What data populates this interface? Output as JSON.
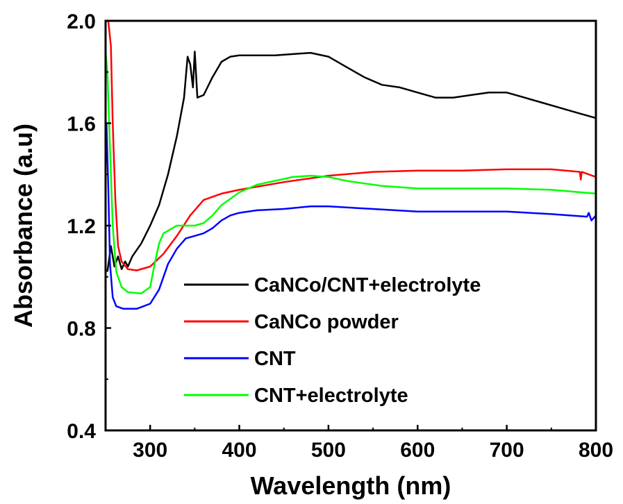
{
  "chart_data": {
    "type": "line",
    "xlabel": "Wavelength (nm)",
    "ylabel": "Absorbance (a.u)",
    "xlim": [
      250,
      800
    ],
    "ylim": [
      0.4,
      2.0
    ],
    "xticks": [
      300,
      400,
      500,
      600,
      700,
      800
    ],
    "yticks": [
      0.4,
      0.8,
      1.2,
      1.6,
      2.0
    ],
    "xtick_labels": [
      "300",
      "400",
      "500",
      "600",
      "700",
      "800"
    ],
    "ytick_labels": [
      "0.4",
      "0.8",
      "1.2",
      "1.6",
      "2.0"
    ],
    "grid": false,
    "legend_position": "lower-right",
    "series": [
      {
        "name": "CaNCo/CNT+electrolyte",
        "color": "#000000",
        "points": [
          [
            252,
            1.02
          ],
          [
            256,
            1.12
          ],
          [
            260,
            1.04
          ],
          [
            264,
            1.08
          ],
          [
            268,
            1.03
          ],
          [
            272,
            1.06
          ],
          [
            275,
            1.04
          ],
          [
            280,
            1.08
          ],
          [
            290,
            1.13
          ],
          [
            300,
            1.2
          ],
          [
            310,
            1.28
          ],
          [
            320,
            1.4
          ],
          [
            330,
            1.55
          ],
          [
            338,
            1.7
          ],
          [
            342,
            1.86
          ],
          [
            345,
            1.83
          ],
          [
            348,
            1.74
          ],
          [
            350,
            1.88
          ],
          [
            353,
            1.7
          ],
          [
            360,
            1.71
          ],
          [
            370,
            1.78
          ],
          [
            380,
            1.84
          ],
          [
            390,
            1.86
          ],
          [
            400,
            1.865
          ],
          [
            420,
            1.865
          ],
          [
            440,
            1.865
          ],
          [
            460,
            1.87
          ],
          [
            480,
            1.875
          ],
          [
            500,
            1.86
          ],
          [
            520,
            1.82
          ],
          [
            540,
            1.78
          ],
          [
            560,
            1.75
          ],
          [
            580,
            1.74
          ],
          [
            600,
            1.72
          ],
          [
            620,
            1.7
          ],
          [
            640,
            1.7
          ],
          [
            660,
            1.71
          ],
          [
            680,
            1.72
          ],
          [
            700,
            1.72
          ],
          [
            720,
            1.7
          ],
          [
            740,
            1.68
          ],
          [
            760,
            1.66
          ],
          [
            780,
            1.64
          ],
          [
            800,
            1.62
          ]
        ]
      },
      {
        "name": "CaNCo powder",
        "color": "#ff0000",
        "points": [
          [
            253,
            2.0
          ],
          [
            256,
            1.9
          ],
          [
            258,
            1.6
          ],
          [
            261,
            1.3
          ],
          [
            264,
            1.12
          ],
          [
            268,
            1.06
          ],
          [
            275,
            1.03
          ],
          [
            285,
            1.025
          ],
          [
            300,
            1.04
          ],
          [
            315,
            1.09
          ],
          [
            330,
            1.16
          ],
          [
            345,
            1.24
          ],
          [
            360,
            1.3
          ],
          [
            380,
            1.325
          ],
          [
            400,
            1.34
          ],
          [
            450,
            1.37
          ],
          [
            500,
            1.395
          ],
          [
            550,
            1.41
          ],
          [
            600,
            1.415
          ],
          [
            650,
            1.415
          ],
          [
            700,
            1.42
          ],
          [
            750,
            1.42
          ],
          [
            782,
            1.41
          ],
          [
            783,
            1.38
          ],
          [
            784,
            1.41
          ],
          [
            800,
            1.39
          ]
        ]
      },
      {
        "name": "CNT",
        "color": "#0000ff",
        "points": [
          [
            251,
            1.6
          ],
          [
            253,
            1.35
          ],
          [
            255,
            1.05
          ],
          [
            258,
            0.92
          ],
          [
            262,
            0.885
          ],
          [
            270,
            0.875
          ],
          [
            285,
            0.875
          ],
          [
            300,
            0.895
          ],
          [
            310,
            0.95
          ],
          [
            320,
            1.05
          ],
          [
            330,
            1.11
          ],
          [
            340,
            1.15
          ],
          [
            350,
            1.16
          ],
          [
            360,
            1.17
          ],
          [
            370,
            1.19
          ],
          [
            380,
            1.22
          ],
          [
            390,
            1.24
          ],
          [
            400,
            1.25
          ],
          [
            420,
            1.26
          ],
          [
            450,
            1.265
          ],
          [
            480,
            1.275
          ],
          [
            500,
            1.275
          ],
          [
            550,
            1.265
          ],
          [
            600,
            1.255
          ],
          [
            650,
            1.255
          ],
          [
            700,
            1.255
          ],
          [
            750,
            1.245
          ],
          [
            790,
            1.235
          ],
          [
            792,
            1.25
          ],
          [
            795,
            1.22
          ],
          [
            800,
            1.24
          ]
        ]
      },
      {
        "name": "CNT+electrolyte",
        "color": "#00ff00",
        "points": [
          [
            250,
            1.88
          ],
          [
            252,
            1.8
          ],
          [
            255,
            1.5
          ],
          [
            258,
            1.2
          ],
          [
            262,
            1.02
          ],
          [
            268,
            0.96
          ],
          [
            275,
            0.94
          ],
          [
            290,
            0.935
          ],
          [
            300,
            0.96
          ],
          [
            305,
            1.05
          ],
          [
            310,
            1.13
          ],
          [
            315,
            1.17
          ],
          [
            320,
            1.18
          ],
          [
            330,
            1.2
          ],
          [
            340,
            1.2
          ],
          [
            350,
            1.2
          ],
          [
            360,
            1.21
          ],
          [
            370,
            1.24
          ],
          [
            380,
            1.28
          ],
          [
            400,
            1.33
          ],
          [
            420,
            1.36
          ],
          [
            440,
            1.375
          ],
          [
            460,
            1.39
          ],
          [
            480,
            1.395
          ],
          [
            500,
            1.39
          ],
          [
            520,
            1.375
          ],
          [
            540,
            1.365
          ],
          [
            560,
            1.355
          ],
          [
            600,
            1.345
          ],
          [
            650,
            1.345
          ],
          [
            700,
            1.345
          ],
          [
            750,
            1.34
          ],
          [
            800,
            1.325
          ]
        ]
      }
    ]
  }
}
